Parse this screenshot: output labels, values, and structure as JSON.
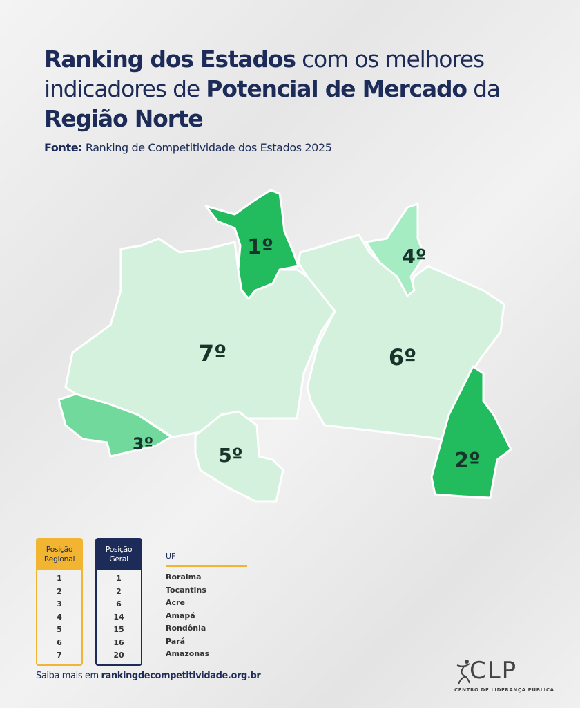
{
  "title": {
    "part1_bold": "Ranking dos Estados",
    "part2": " com os melhores indicadores de ",
    "part3_bold": "Potencial de Mercado",
    "part4": " da ",
    "part5_bold": "Região Norte"
  },
  "source": {
    "label": "Fonte:",
    "text": " Ranking de Competitividade dos Estados 2025"
  },
  "map": {
    "colors": {
      "top": "#22bb5e",
      "third": "#72d99c",
      "fourth": "#a6ecc3",
      "other": "#d3f1dc"
    },
    "states": [
      {
        "uf": "Roraima",
        "rank": "1º"
      },
      {
        "uf": "Tocantins",
        "rank": "2º"
      },
      {
        "uf": "Acre",
        "rank": "3º"
      },
      {
        "uf": "Amapá",
        "rank": "4º"
      },
      {
        "uf": "Rondônia",
        "rank": "5º"
      },
      {
        "uf": "Pará",
        "rank": "6º"
      },
      {
        "uf": "Amazonas",
        "rank": "7º"
      }
    ]
  },
  "table": {
    "regional_header": "Posição Regional",
    "geral_header": "Posição Geral",
    "uf_header": "UF",
    "regional": [
      "1",
      "2",
      "3",
      "4",
      "5",
      "6",
      "7"
    ],
    "geral": [
      "1",
      "2",
      "6",
      "14",
      "15",
      "16",
      "20"
    ],
    "uf": [
      "Roraima",
      "Tocantins",
      "Acre",
      "Amapá",
      "Rondônia",
      "Pará",
      "Amazonas"
    ]
  },
  "footer": {
    "prefix": "Saiba mais em ",
    "link": "rankingdecompetitividade.org.br"
  },
  "logo": {
    "text": "CLP",
    "subtitle": "CENTRO DE LIDERANÇA PÚBLICA"
  }
}
